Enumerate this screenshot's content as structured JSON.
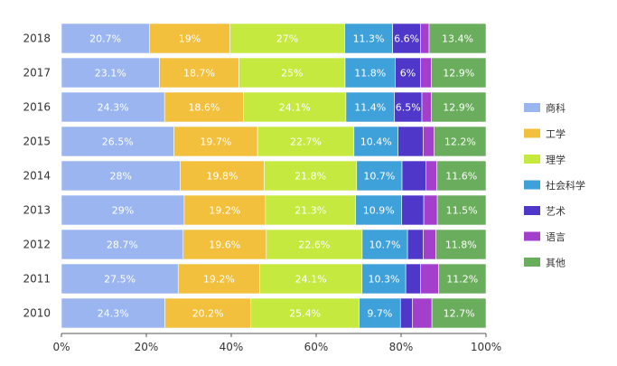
{
  "chart_data": {
    "type": "bar",
    "orientation": "horizontal",
    "stacked": true,
    "percent": true,
    "xlim": [
      0,
      100
    ],
    "x_ticks": [
      "0%",
      "20%",
      "40%",
      "60%",
      "80%",
      "100%"
    ],
    "x_tick_values": [
      0,
      20,
      40,
      60,
      80,
      100
    ],
    "categories": [
      "2018",
      "2017",
      "2016",
      "2015",
      "2014",
      "2013",
      "2012",
      "2011",
      "2010"
    ],
    "legend_position": "right",
    "series": [
      {
        "name": "商科",
        "color": "#9ab5ef",
        "values": [
          20.7,
          23.1,
          24.3,
          26.5,
          28,
          29,
          28.7,
          27.5,
          24.3
        ],
        "labels": [
          "20.7%",
          "23.1%",
          "24.3%",
          "26.5%",
          "28%",
          "29%",
          "28.7%",
          "27.5%",
          "24.3%"
        ]
      },
      {
        "name": "工学",
        "color": "#f2c03c",
        "values": [
          19,
          18.7,
          18.6,
          19.7,
          19.8,
          19.2,
          19.6,
          19.2,
          20.2
        ],
        "labels": [
          "19%",
          "18.7%",
          "18.6%",
          "19.7%",
          "19.8%",
          "19.2%",
          "19.6%",
          "19.2%",
          "20.2%"
        ]
      },
      {
        "name": "理学",
        "color": "#c6e93f",
        "values": [
          27,
          25,
          24.1,
          22.7,
          21.8,
          21.3,
          22.6,
          24.1,
          25.4
        ],
        "labels": [
          "27%",
          "25%",
          "24.1%",
          "22.7%",
          "21.8%",
          "21.3%",
          "22.6%",
          "24.1%",
          "25.4%"
        ]
      },
      {
        "name": "社会科学",
        "color": "#3fa1d9",
        "values": [
          11.3,
          11.8,
          11.4,
          10.4,
          10.7,
          10.9,
          10.7,
          10.3,
          9.7
        ],
        "labels": [
          "11.3%",
          "11.8%",
          "11.4%",
          "10.4%",
          "10.7%",
          "10.9%",
          "10.7%",
          "10.3%",
          "9.7%"
        ]
      },
      {
        "name": "艺术",
        "color": "#4f38c9",
        "values": [
          6.6,
          6,
          6.5,
          5.9,
          5.6,
          5.2,
          3.7,
          3.5,
          2.8
        ],
        "labels": [
          "6.6%",
          "6%",
          "6.5%",
          "",
          "",
          "",
          "",
          "",
          ""
        ]
      },
      {
        "name": "语言",
        "color": "#a43fcc",
        "values": [
          2,
          2.5,
          2.2,
          2.6,
          2.6,
          3.2,
          3.0,
          4.2,
          4.6
        ],
        "labels": [
          "",
          "",
          "",
          "",
          "",
          "",
          "",
          "",
          ""
        ]
      },
      {
        "name": "其他",
        "color": "#6aad5c",
        "values": [
          13.4,
          12.9,
          12.9,
          12.2,
          11.6,
          11.5,
          11.8,
          11.2,
          12.7
        ],
        "labels": [
          "13.4%",
          "12.9%",
          "12.9%",
          "12.2%",
          "11.6%",
          "11.5%",
          "11.8%",
          "11.2%",
          "12.7%"
        ]
      }
    ]
  }
}
